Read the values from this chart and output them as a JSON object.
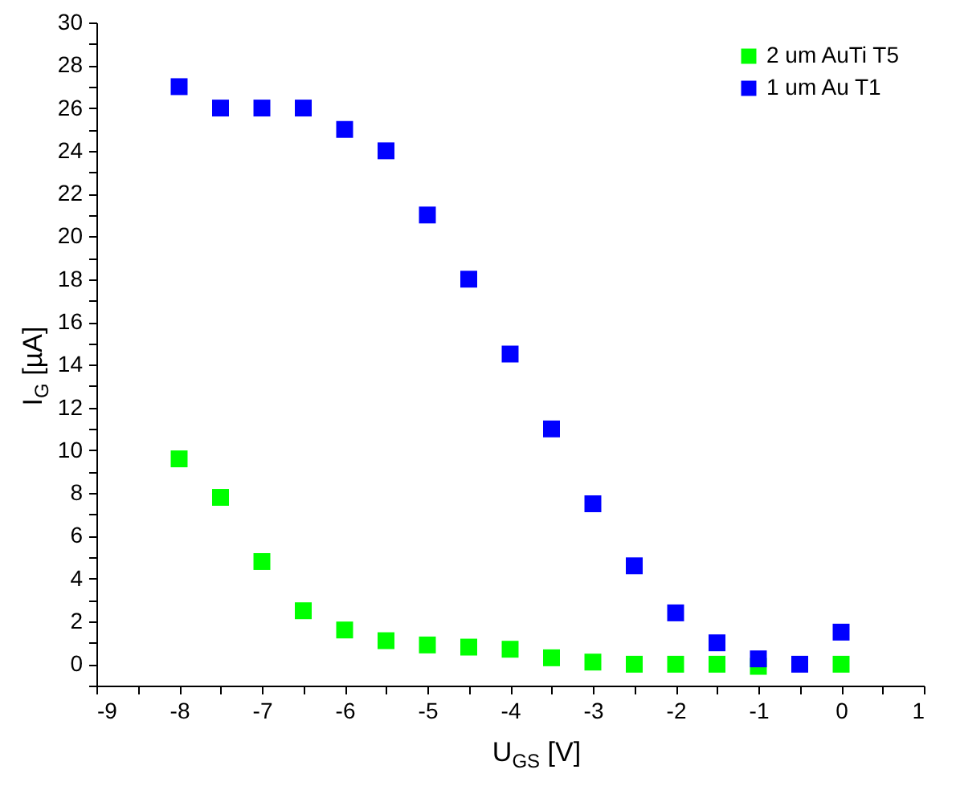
{
  "chart_data": {
    "type": "scatter",
    "xlabel": "U$_{GS}$ [V]",
    "ylabel": "I$_{G}$ [µA]",
    "x": [
      -8,
      -7.5,
      -7,
      -6.5,
      -6,
      -5.5,
      -5,
      -4.5,
      -4,
      -3.5,
      -3,
      -2.5,
      -2,
      -1.5,
      -1,
      -0.5,
      0
    ],
    "series": [
      {
        "name": "2 um AuTi T5",
        "color": "#00ff00",
        "values": [
          9.6,
          7.8,
          4.8,
          2.5,
          1.6,
          1.1,
          0.9,
          0.8,
          0.7,
          0.3,
          0.1,
          0.0,
          0.0,
          0.0,
          -0.1,
          null,
          0.0
        ]
      },
      {
        "name": "1 um Au T1",
        "color": "#0000ff",
        "values": [
          27,
          26,
          26,
          26,
          25,
          24,
          21,
          18,
          14.5,
          11,
          7.5,
          4.6,
          2.4,
          1.0,
          0.25,
          0.0,
          1.5
        ]
      }
    ],
    "xlim": [
      -9,
      1
    ],
    "ylim": [
      -1,
      30
    ],
    "xticks": [
      -9,
      {
        "value": -8.5,
        "label": null
      },
      -8,
      {
        "value": -7.5,
        "label": null
      },
      -7,
      {
        "value": -6.5,
        "label": null
      },
      -6,
      {
        "value": -5.5,
        "label": null
      },
      -5,
      {
        "value": -4.5,
        "label": null
      },
      -4,
      {
        "value": -3.5,
        "label": null
      },
      -3,
      {
        "value": -2.5,
        "label": null
      },
      -2,
      {
        "value": -1.5,
        "label": null
      },
      -1,
      {
        "value": -0.5,
        "label": null
      },
      0,
      {
        "value": 0.5,
        "label": null
      },
      1
    ],
    "yticks": [
      {
        "value": -1,
        "label": null
      },
      0,
      {
        "value": 1,
        "label": null
      },
      2,
      {
        "value": 3,
        "label": null
      },
      4,
      {
        "value": 5,
        "label": null
      },
      6,
      {
        "value": 7,
        "label": null
      },
      8,
      {
        "value": 9,
        "label": null
      },
      10,
      {
        "value": 11,
        "label": null
      },
      12,
      {
        "value": 13,
        "label": null
      },
      14,
      {
        "value": 15,
        "label": null
      },
      16,
      {
        "value": 17,
        "label": null
      },
      18,
      {
        "value": 19,
        "label": null
      },
      20,
      {
        "value": 21,
        "label": null
      },
      22,
      {
        "value": 23,
        "label": null
      },
      24,
      {
        "value": 25,
        "label": null
      },
      26,
      {
        "value": 27,
        "label": null
      },
      28,
      {
        "value": 29,
        "label": null
      },
      30
    ],
    "grid": false,
    "legend": "top right",
    "marker": "square"
  }
}
